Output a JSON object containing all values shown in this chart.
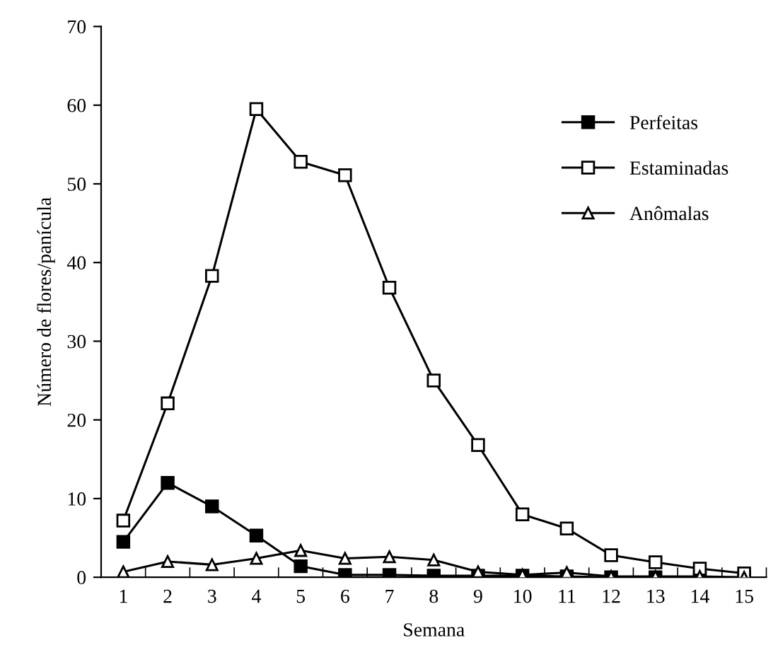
{
  "chart_data": {
    "type": "line",
    "xlabel": "Semana",
    "ylabel": "Número de flores/panícula",
    "categories": [
      "1",
      "2",
      "3",
      "4",
      "5",
      "6",
      "7",
      "8",
      "9",
      "10",
      "11",
      "12",
      "13",
      "14",
      "15"
    ],
    "series": [
      {
        "name": "Perfeitas",
        "color": "#000000",
        "marker": "square",
        "values": [
          4.5,
          12,
          9,
          5.3,
          1.4,
          0.3,
          0.3,
          0.2,
          0.2,
          0.2,
          0.1,
          0,
          0,
          0,
          0
        ]
      },
      {
        "name": "Estaminadas",
        "color": "#000000",
        "marker": "square",
        "values": [
          7.2,
          22.1,
          38.3,
          59.5,
          52.8,
          51.1,
          36.8,
          25,
          16.8,
          8,
          6.2,
          2.8,
          1.9,
          1.1,
          0.5
        ]
      },
      {
        "name": "Anômalas",
        "color": "#000000",
        "marker": "triangle",
        "values": [
          0.7,
          2,
          1.6,
          2.4,
          3.4,
          2.4,
          2.6,
          2.2,
          0.7,
          0.3,
          0.6,
          0.1,
          0.1,
          0.1,
          0
        ]
      }
    ],
    "ylim": [
      0,
      70
    ],
    "yticks": [
      0,
      10,
      20,
      30,
      40,
      50,
      60,
      70
    ],
    "grid": false,
    "legend": "right",
    "line_style": "solid"
  }
}
